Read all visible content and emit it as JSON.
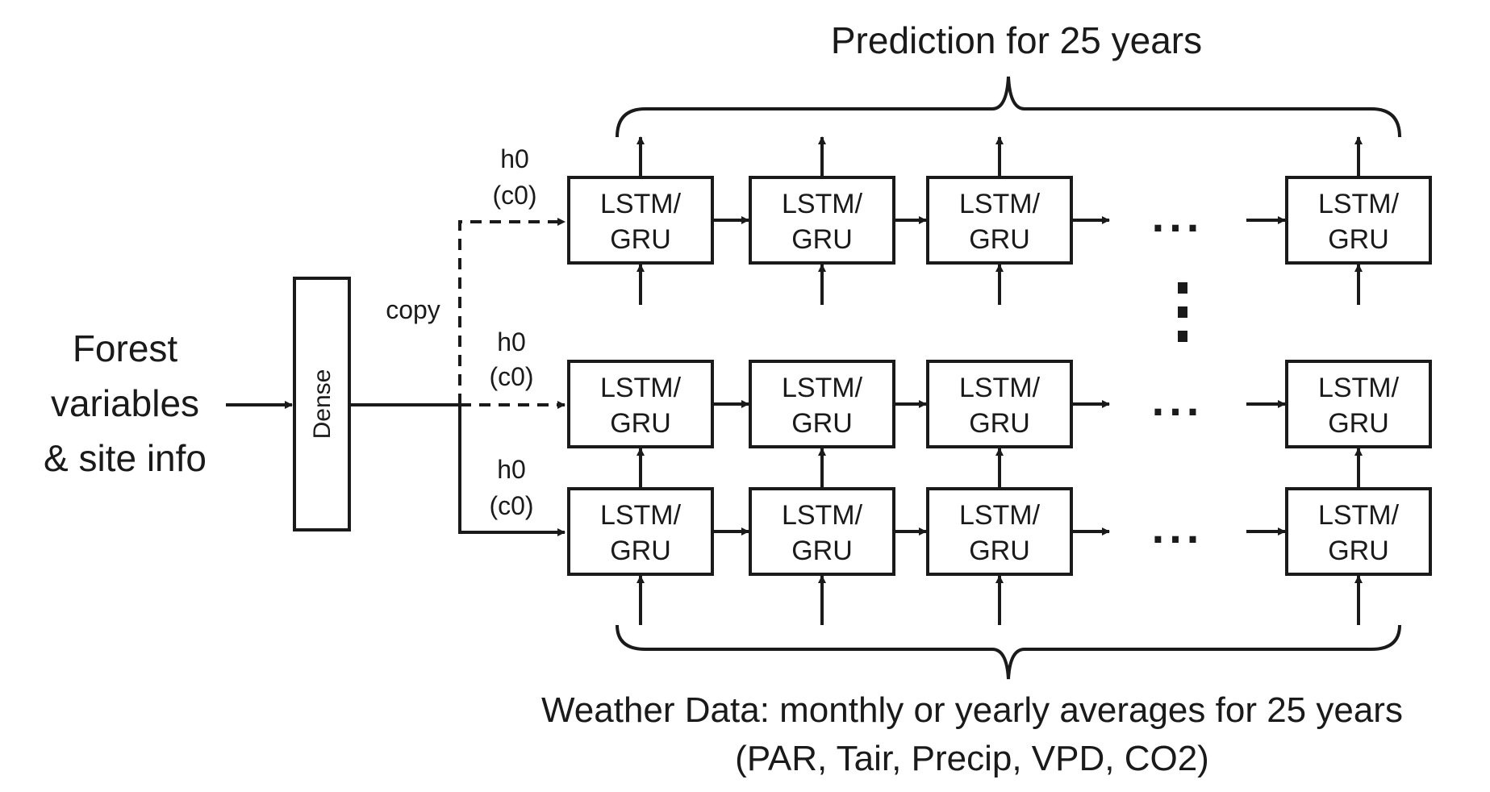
{
  "title": "Prediction for 25 years",
  "input_label": [
    "Forest",
    "variables",
    "& site info"
  ],
  "dense_label": "Dense",
  "copy_label": "copy",
  "init_state_labels": [
    {
      "line1": "h0",
      "line2": "(c0)"
    },
    {
      "line1": "h0",
      "line2": "(c0)"
    },
    {
      "line1": "h0",
      "line2": "(c0)"
    }
  ],
  "cell_label": [
    "LSTM/",
    "GRU"
  ],
  "ellipsis": "...",
  "footer_line1": "Weather Data: monthly or yearly averages for 25 years",
  "footer_line2": "(PAR, Tair, Precip, VPD, CO2)",
  "colors": {
    "stroke": "#1a1a1a",
    "background": "#ffffff"
  }
}
